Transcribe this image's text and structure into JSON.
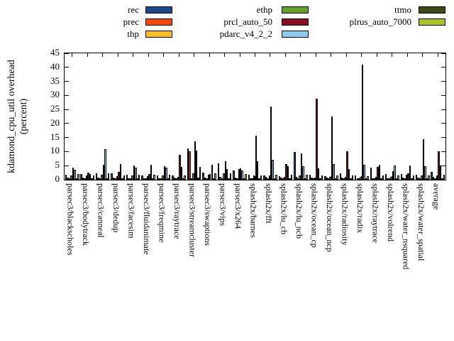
{
  "chart_data": {
    "type": "bar",
    "title": "",
    "ylabel_lines": [
      "kdamond_cpu_util overhead",
      "(percent)"
    ],
    "ylim": [
      0,
      45
    ],
    "ytick_step": 5,
    "yticks": [
      0,
      5,
      10,
      15,
      20,
      25,
      30,
      35,
      40,
      45
    ],
    "grid": "off",
    "legend_position": "top",
    "categories": [
      "parsec3/blackscholes",
      "parsec3/bodytrack",
      "parsec3/canneal",
      "parsec3/dedup",
      "parsec3/facesim",
      "parsec3/fluidanimate",
      "parsec3/freqmine",
      "parsec3/raytrace",
      "parsec3/streamcluster",
      "parsec3/swaptions",
      "parsec3/vips",
      "parsec3/x264",
      "splash2x/barnes",
      "splash2x/fft",
      "splash2x/lu_cb",
      "splash2x/lu_ncb",
      "splash2x/ocean_cp",
      "splash2x/ocean_ncp",
      "splash2x/radiosity",
      "splash2x/radix",
      "splash2x/raytrace",
      "splash2x/volrend",
      "splash2x/water_nsquared",
      "splash2x/water_spatial",
      "average"
    ],
    "series": [
      {
        "name": "rec",
        "color": "#1a4a88",
        "values": [
          1.7,
          2.0,
          2.2,
          2.2,
          1.7,
          1.5,
          1.5,
          1.4,
          11.2,
          2.5,
          5.7,
          3.2,
          1.7,
          1.5,
          1.2,
          9.9,
          1.7,
          1.3,
          2.2,
          1.5,
          4.2,
          2.0,
          2.0,
          1.8,
          2.8
        ]
      },
      {
        "name": "prec",
        "color": "#fc4408",
        "values": [
          0.7,
          0.7,
          0.8,
          0.7,
          0.6,
          0.5,
          0.5,
          0.7,
          10.0,
          0.8,
          1.0,
          0.7,
          0.6,
          1.0,
          0.8,
          0.9,
          0.8,
          0.7,
          0.7,
          0.6,
          0.6,
          0.6,
          0.7,
          0.7,
          1.0
        ]
      },
      {
        "name": "thp",
        "color": "#fdc029",
        "values": [
          0.4,
          0.5,
          0.5,
          0.4,
          0.4,
          0.4,
          0.4,
          0.4,
          0.6,
          0.5,
          0.5,
          0.5,
          0.4,
          0.4,
          0.4,
          0.4,
          0.4,
          0.4,
          0.4,
          0.4,
          0.4,
          0.4,
          0.4,
          0.4,
          0.5
        ]
      },
      {
        "name": "ethp",
        "color": "#64a12b",
        "values": [
          1.5,
          1.5,
          1.8,
          1.3,
          1.5,
          1.3,
          1.5,
          1.0,
          2.2,
          1.9,
          2.2,
          3.7,
          1.6,
          1.5,
          1.0,
          1.4,
          0.8,
          1.0,
          1.0,
          1.1,
          1.0,
          1.0,
          1.7,
          1.4,
          1.5
        ]
      },
      {
        "name": "prcl_auto_50",
        "color": "#8c0c24",
        "values": [
          4.2,
          2.5,
          5.2,
          2.7,
          5.0,
          2.0,
          4.7,
          8.9,
          13.7,
          2.0,
          6.5,
          4.0,
          15.7,
          26.1,
          5.6,
          9.4,
          28.7,
          22.6,
          10.2,
          41.0,
          4.6,
          3.0,
          2.2,
          14.4,
          10.2
        ]
      },
      {
        "name": "pdarc_v4_2_2",
        "color": "#8dcbee",
        "values": [
          3.5,
          2.0,
          11.0,
          5.5,
          4.2,
          5.2,
          4.2,
          4.5,
          10.4,
          5.3,
          3.7,
          3.2,
          6.7,
          7.2,
          4.7,
          4.7,
          4.0,
          5.5,
          3.7,
          5.2,
          5.4,
          5.0,
          5.1,
          4.7,
          5.0
        ]
      },
      {
        "name": "ttmo",
        "color": "#3e4a14",
        "values": [
          0.5,
          0.5,
          0.6,
          0.4,
          0.5,
          0.4,
          0.5,
          0.5,
          0.7,
          0.6,
          0.5,
          0.5,
          0.5,
          0.5,
          0.5,
          0.6,
          0.5,
          0.5,
          0.5,
          0.5,
          0.5,
          0.5,
          0.5,
          0.5,
          0.5
        ]
      },
      {
        "name": "plrus_auto_7000",
        "color": "#a6c71a",
        "values": [
          2.0,
          1.4,
          2.2,
          1.5,
          1.9,
          1.7,
          1.9,
          1.4,
          4.6,
          2.4,
          2.3,
          2.0,
          1.6,
          1.7,
          1.7,
          1.7,
          1.4,
          1.4,
          1.5,
          1.3,
          1.4,
          1.5,
          1.5,
          1.6,
          1.8
        ]
      }
    ]
  },
  "legend": {
    "columns": [
      [
        "rec",
        "prec",
        "thp"
      ],
      [
        "ethp",
        "prcl_auto_50",
        "pdarc_v4_2_2"
      ],
      [
        "ttmo",
        "plrus_auto_7000"
      ]
    ]
  }
}
